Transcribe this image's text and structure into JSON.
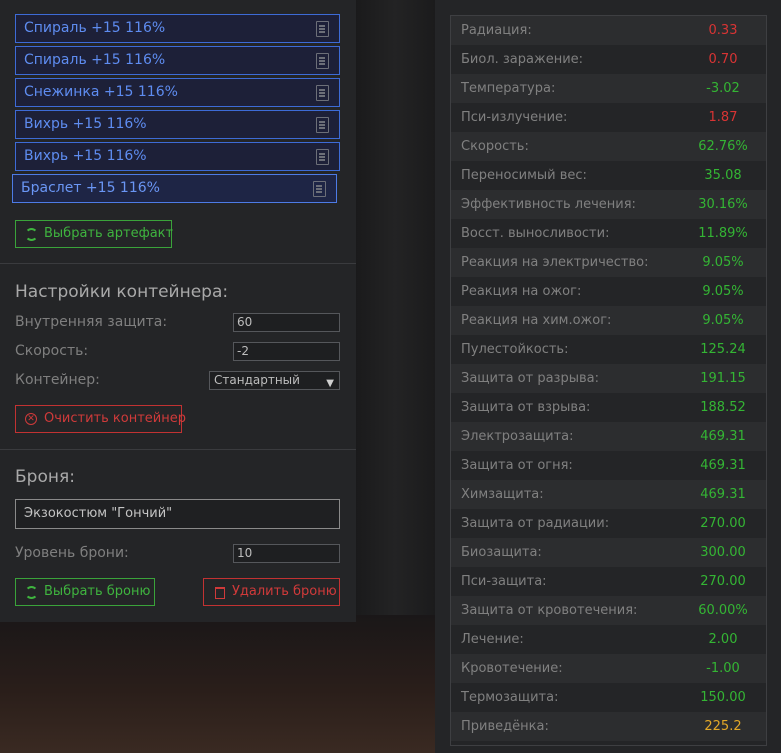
{
  "artifacts": [
    {
      "label": "Спираль +15 116%"
    },
    {
      "label": "Спираль +15 116%"
    },
    {
      "label": "Снежинка +15 116%"
    },
    {
      "label": "Вихрь +15 116%"
    },
    {
      "label": "Вихрь +15 116%"
    },
    {
      "label": "Браслет +15 116%"
    }
  ],
  "select_artifact_label": "Выбрать артефакт",
  "container": {
    "title": "Настройки контейнера:",
    "internal_protection_label": "Внутренняя защита:",
    "internal_protection_value": "60",
    "speed_label": "Скорость:",
    "speed_value": "-2",
    "container_label": "Контейнер:",
    "container_value": "Стандартный",
    "clear_label": "Очистить контейнер"
  },
  "armor": {
    "title": "Броня:",
    "name": "Экзокостюм \"Гончий\"",
    "level_label": "Уровень брони:",
    "level_value": "10",
    "select_label": "Выбрать броню",
    "delete_label": "Удалить броню"
  },
  "stats": [
    {
      "label": "Радиация:",
      "value": "0.33",
      "color": "red"
    },
    {
      "label": "Биол. заражение:",
      "value": "0.70",
      "color": "red"
    },
    {
      "label": "Температура:",
      "value": "-3.02",
      "color": "green"
    },
    {
      "label": "Пси-излучение:",
      "value": "1.87",
      "color": "red"
    },
    {
      "label": "Скорость:",
      "value": "62.76%",
      "color": "green"
    },
    {
      "label": "Переносимый вес:",
      "value": "35.08",
      "color": "green"
    },
    {
      "label": "Эффективность лечения:",
      "value": "30.16%",
      "color": "green"
    },
    {
      "label": "Восст. выносливости:",
      "value": "11.89%",
      "color": "green"
    },
    {
      "label": "Реакция на электричество:",
      "value": "9.05%",
      "color": "green"
    },
    {
      "label": "Реакция на ожог:",
      "value": "9.05%",
      "color": "green"
    },
    {
      "label": "Реакция на хим.ожог:",
      "value": "9.05%",
      "color": "green"
    },
    {
      "label": "Пулестойкость:",
      "value": "125.24",
      "color": "green"
    },
    {
      "label": "Защита от разрыва:",
      "value": "191.15",
      "color": "green"
    },
    {
      "label": "Защита от взрыва:",
      "value": "188.52",
      "color": "green"
    },
    {
      "label": "Электрозащита:",
      "value": "469.31",
      "color": "green"
    },
    {
      "label": "Защита от огня:",
      "value": "469.31",
      "color": "green"
    },
    {
      "label": "Химзащита:",
      "value": "469.31",
      "color": "green"
    },
    {
      "label": "Защита от радиации:",
      "value": "270.00",
      "color": "green"
    },
    {
      "label": "Биозащита:",
      "value": "300.00",
      "color": "green"
    },
    {
      "label": "Пси-защита:",
      "value": "270.00",
      "color": "green"
    },
    {
      "label": "Защита от кровотечения:",
      "value": "60.00%",
      "color": "green"
    },
    {
      "label": "Лечение:",
      "value": "2.00",
      "color": "green"
    },
    {
      "label": "Кровотечение:",
      "value": "-1.00",
      "color": "green"
    },
    {
      "label": "Термозащита:",
      "value": "150.00",
      "color": "green"
    },
    {
      "label": "Приведёнка:",
      "value": "225.2",
      "color": "yellow"
    }
  ]
}
